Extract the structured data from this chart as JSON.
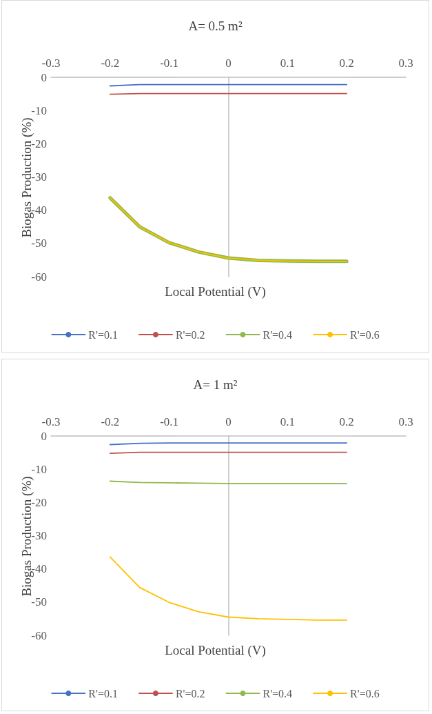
{
  "chart_data": [
    {
      "type": "line",
      "title": "A= 0.5 m²",
      "xlabel": "Local Potential (V)",
      "ylabel": "Biogas Production (%)",
      "x": [
        -0.2,
        -0.15,
        -0.1,
        -0.05,
        0,
        0.05,
        0.1,
        0.15,
        0.2
      ],
      "xlim": [
        -0.3,
        0.3
      ],
      "xticks": [
        -0.3,
        -0.2,
        -0.1,
        0,
        0.1,
        0.2,
        0.3
      ],
      "ylim": [
        -60,
        0
      ],
      "yticks": [
        -60,
        -50,
        -40,
        -30,
        -20,
        -10,
        0
      ],
      "legend": "bottom",
      "marker": "none",
      "series": [
        {
          "name": "R'=0.1",
          "color": "#4472c4",
          "values": [
            -2.6,
            -2.2,
            -2.2,
            -2.2,
            -2.2,
            -2.2,
            -2.2,
            -2.2,
            -2.2
          ]
        },
        {
          "name": "R'=0.2",
          "color": "#c0504d",
          "values": [
            -5.1,
            -4.9,
            -4.9,
            -4.9,
            -4.9,
            -4.9,
            -4.9,
            -4.9,
            -4.9
          ]
        },
        {
          "name": "R'=0.4",
          "color": "#8fb94c",
          "values": [
            -36.3,
            -45,
            -49.8,
            -52.6,
            -54.4,
            -55.1,
            -55.3,
            -55.4,
            -55.4
          ]
        },
        {
          "name": "R'=0.6",
          "color": "#ffc000",
          "values": [
            -36.3,
            -45,
            -49.8,
            -52.6,
            -54.4,
            -55.1,
            -55.3,
            -55.4,
            -55.4
          ]
        }
      ]
    },
    {
      "type": "line",
      "title": "A= 1 m²",
      "xlabel": "Local Potential (V)",
      "ylabel": "Biogas Production (%)",
      "x": [
        -0.2,
        -0.15,
        -0.1,
        -0.05,
        0,
        0.05,
        0.1,
        0.15,
        0.2
      ],
      "xlim": [
        -0.3,
        0.3
      ],
      "xticks": [
        -0.3,
        -0.2,
        -0.1,
        0,
        0.1,
        0.2,
        0.3
      ],
      "ylim": [
        -60,
        0
      ],
      "yticks": [
        -60,
        -50,
        -40,
        -30,
        -20,
        -10,
        0
      ],
      "legend": "bottom",
      "marker": "none",
      "series": [
        {
          "name": "R'=0.1",
          "color": "#4472c4",
          "values": [
            -2.6,
            -2.2,
            -2.1,
            -2.1,
            -2.1,
            -2.1,
            -2.1,
            -2.1,
            -2.1
          ]
        },
        {
          "name": "R'=0.2",
          "color": "#c0504d",
          "values": [
            -5.2,
            -4.9,
            -4.9,
            -4.9,
            -4.9,
            -4.9,
            -4.9,
            -4.9,
            -4.9
          ]
        },
        {
          "name": "R'=0.4",
          "color": "#8fb94c",
          "values": [
            -13.6,
            -14,
            -14.1,
            -14.2,
            -14.3,
            -14.3,
            -14.3,
            -14.3,
            -14.3
          ]
        },
        {
          "name": "R'=0.6",
          "color": "#ffc000",
          "values": [
            -36.4,
            -45.6,
            -50.1,
            -52.9,
            -54.5,
            -55,
            -55.2,
            -55.4,
            -55.4
          ]
        }
      ]
    }
  ]
}
